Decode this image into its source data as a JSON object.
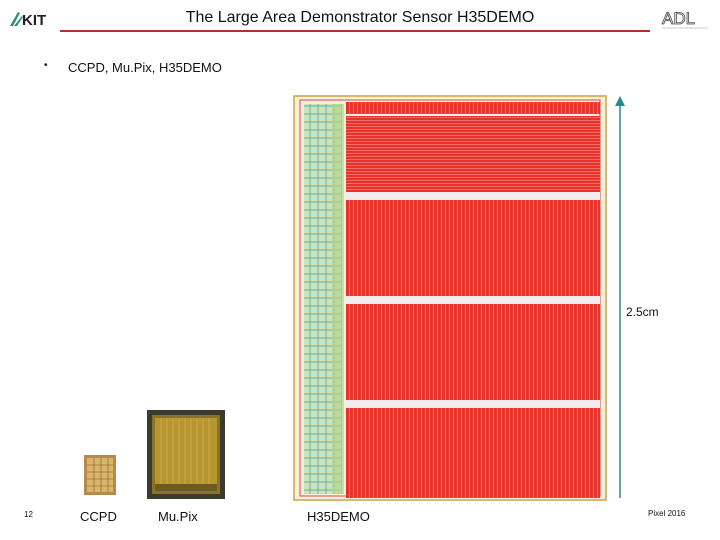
{
  "header": {
    "title": "The Large Area Demonstrator Sensor H35DEMO",
    "logo_left": "KIT",
    "logo_right": "ADL"
  },
  "content": {
    "bullets": [
      "CCPD, Mu.Pix, H35DEMO"
    ],
    "bullet_symbol": "•",
    "scale_label": "2.5cm",
    "captions": {
      "ccpd": "CCPD",
      "mupix": "Mu.Pix",
      "h35": "H35DEMO"
    }
  },
  "footer": {
    "page_number": "12",
    "right_text": "Pixel 2016"
  },
  "colors": {
    "accent_rule": "#b2322b",
    "sensor_red": "#e8332d",
    "scale_arrow": "#2a8a8a"
  }
}
